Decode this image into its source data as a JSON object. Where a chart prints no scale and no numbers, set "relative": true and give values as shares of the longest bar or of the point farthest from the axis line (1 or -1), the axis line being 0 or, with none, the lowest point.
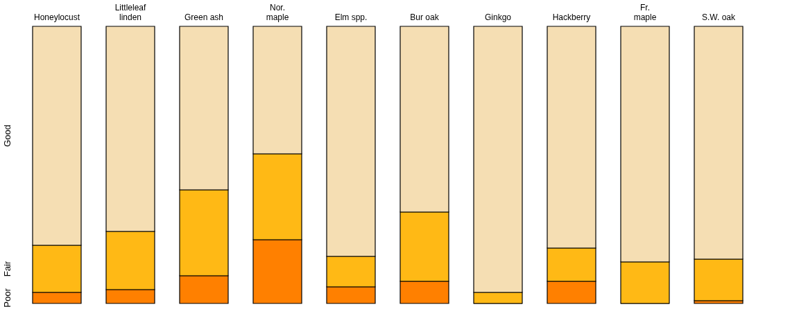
{
  "chart_data": {
    "type": "bar",
    "stacked": true,
    "relative": true,
    "grid": false,
    "categories": [
      "Honeylocust",
      "Littleleaf\nlinden",
      "Green ash",
      "Nor.\nmaple",
      "Elm spp.",
      "Bur oak",
      "Ginkgo",
      "Hackberry",
      "Fr.\nmaple",
      "S.W. oak"
    ],
    "series": [
      {
        "name": "Poor",
        "color": "#ff8000",
        "values": [
          0.04,
          0.05,
          0.1,
          0.23,
          0.06,
          0.08,
          0,
          0.08,
          0,
          0.01
        ]
      },
      {
        "name": "Fair",
        "color": "#ffb915",
        "values": [
          0.17,
          0.21,
          0.31,
          0.31,
          0.11,
          0.25,
          0.04,
          0.12,
          0.15,
          0.15
        ]
      },
      {
        "name": "Good",
        "color": "#f5deb3",
        "values": [
          0.79,
          0.74,
          0.59,
          0.46,
          0.83,
          0.67,
          0.96,
          0.8,
          0.85,
          0.84
        ]
      }
    ]
  }
}
